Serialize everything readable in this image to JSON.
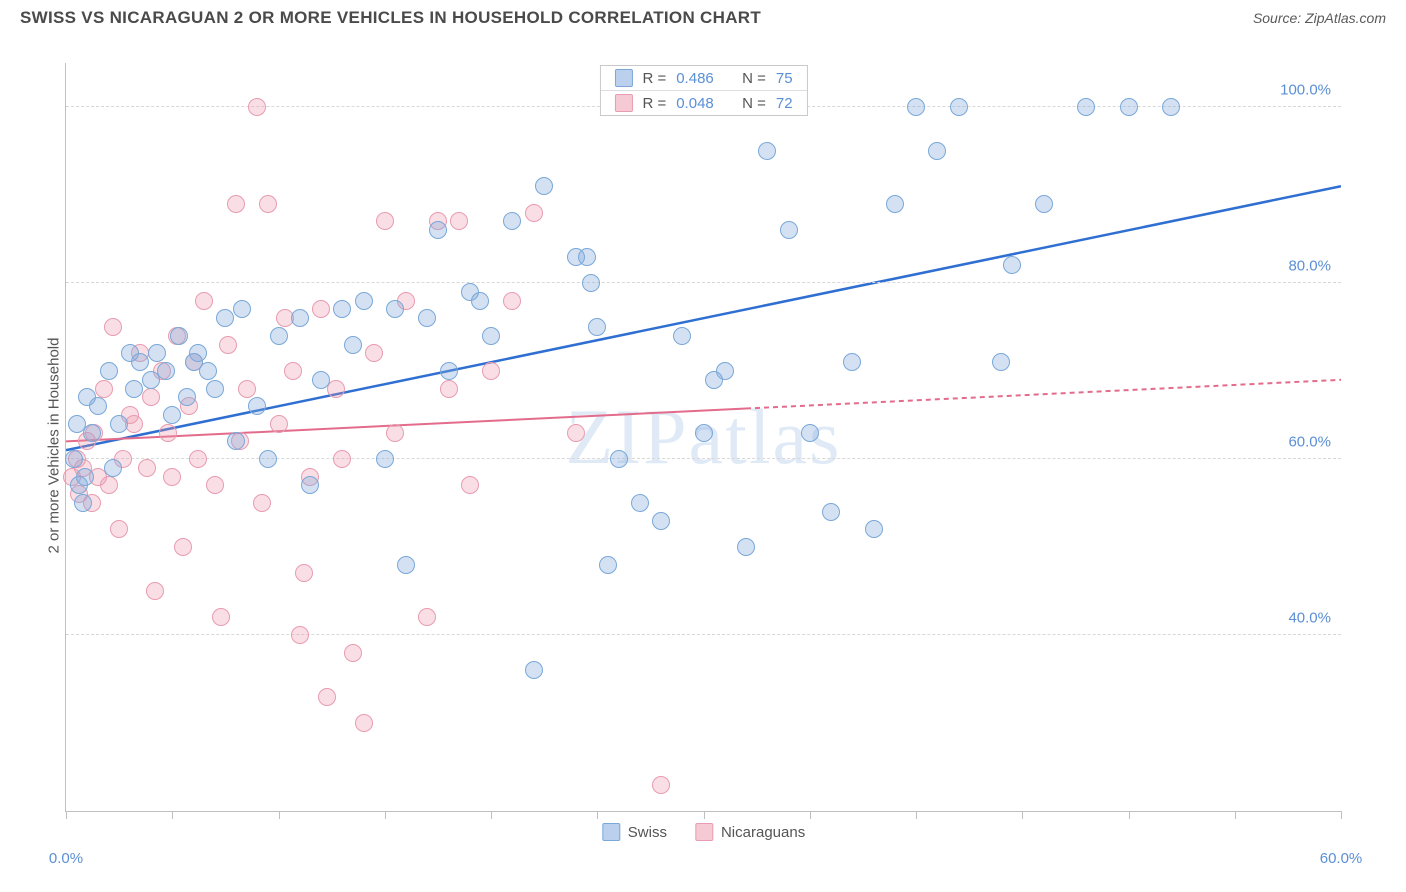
{
  "title": "SWISS VS NICARAGUAN 2 OR MORE VEHICLES IN HOUSEHOLD CORRELATION CHART",
  "source_label": "Source:",
  "source_name": "ZipAtlas.com",
  "watermark": "ZIPatlas",
  "chart": {
    "type": "scatter",
    "y_label": "2 or more Vehicles in Household",
    "xlim": [
      0,
      60
    ],
    "ylim": [
      20,
      105
    ],
    "x_ticks": [
      0,
      5,
      10,
      15,
      20,
      25,
      30,
      35,
      40,
      45,
      50,
      55,
      60
    ],
    "x_tick_labels": {
      "0": "0.0%",
      "60": "60.0%"
    },
    "y_gridlines": [
      40,
      60,
      80,
      100
    ],
    "y_tick_labels": {
      "40": "40.0%",
      "60": "60.0%",
      "80": "80.0%",
      "100": "100.0%"
    },
    "background_color": "#ffffff",
    "grid_color": "#d8d8d8",
    "axis_color": "#c0c0c0",
    "tick_label_color": "#5b8fd6",
    "axis_label_color": "#555555",
    "marker_radius": 9,
    "series": [
      {
        "name": "Swiss",
        "color_fill": "rgba(130,170,220,0.35)",
        "color_stroke": "#7aa8d8",
        "trend_color": "#2e6fd1",
        "trend_width": 2.5,
        "trend": {
          "x0": 0,
          "y0": 61,
          "x1": 60,
          "y1": 91,
          "dash_from_x": null
        },
        "stats": {
          "R": "0.486",
          "N": "75"
        },
        "points": [
          [
            0.4,
            60
          ],
          [
            0.5,
            64
          ],
          [
            0.6,
            57
          ],
          [
            0.8,
            55
          ],
          [
            0.9,
            58
          ],
          [
            1.0,
            67
          ],
          [
            1.2,
            63
          ],
          [
            1.5,
            66
          ],
          [
            2,
            70
          ],
          [
            2.2,
            59
          ],
          [
            2.5,
            64
          ],
          [
            3,
            72
          ],
          [
            3.2,
            68
          ],
          [
            3.5,
            71
          ],
          [
            4,
            69
          ],
          [
            4.3,
            72
          ],
          [
            4.7,
            70
          ],
          [
            5,
            65
          ],
          [
            5.3,
            74
          ],
          [
            5.7,
            67
          ],
          [
            6,
            71
          ],
          [
            6.2,
            72
          ],
          [
            6.7,
            70
          ],
          [
            7,
            68
          ],
          [
            7.5,
            76
          ],
          [
            8,
            62
          ],
          [
            8.3,
            77
          ],
          [
            9,
            66
          ],
          [
            9.5,
            60
          ],
          [
            10,
            74
          ],
          [
            11,
            76
          ],
          [
            11.5,
            57
          ],
          [
            12,
            69
          ],
          [
            13,
            77
          ],
          [
            13.5,
            73
          ],
          [
            14,
            78
          ],
          [
            15,
            60
          ],
          [
            15.5,
            77
          ],
          [
            16,
            48
          ],
          [
            17,
            76
          ],
          [
            17.5,
            86
          ],
          [
            18,
            70
          ],
          [
            19,
            79
          ],
          [
            19.5,
            78
          ],
          [
            20,
            74
          ],
          [
            21,
            87
          ],
          [
            22,
            36
          ],
          [
            22.5,
            91
          ],
          [
            24,
            83
          ],
          [
            24.5,
            83
          ],
          [
            24.7,
            80
          ],
          [
            25,
            75
          ],
          [
            25.5,
            48
          ],
          [
            26,
            60
          ],
          [
            27,
            55
          ],
          [
            28,
            53
          ],
          [
            29,
            74
          ],
          [
            30,
            63
          ],
          [
            30.5,
            69
          ],
          [
            31,
            70
          ],
          [
            32,
            50
          ],
          [
            33,
            95
          ],
          [
            34,
            86
          ],
          [
            35,
            63
          ],
          [
            36,
            54
          ],
          [
            37,
            71
          ],
          [
            38,
            52
          ],
          [
            39,
            89
          ],
          [
            40,
            100
          ],
          [
            41,
            95
          ],
          [
            42,
            100
          ],
          [
            44,
            71
          ],
          [
            44.5,
            82
          ],
          [
            46,
            89
          ],
          [
            48,
            100
          ],
          [
            50,
            100
          ],
          [
            52,
            100
          ]
        ]
      },
      {
        "name": "Nicaraguans",
        "color_fill": "rgba(235,150,170,0.30)",
        "color_stroke": "#e89cb0",
        "trend_color": "#e36b8b",
        "trend_width": 2,
        "trend": {
          "x0": 0,
          "y0": 62,
          "x1": 60,
          "y1": 69,
          "dash_from_x": 32
        },
        "stats": {
          "R": "0.048",
          "N": "72"
        },
        "points": [
          [
            0.3,
            58
          ],
          [
            0.5,
            60
          ],
          [
            0.6,
            56
          ],
          [
            0.8,
            59
          ],
          [
            1,
            62
          ],
          [
            1.2,
            55
          ],
          [
            1.3,
            63
          ],
          [
            1.5,
            58
          ],
          [
            1.8,
            68
          ],
          [
            2,
            57
          ],
          [
            2.2,
            75
          ],
          [
            2.5,
            52
          ],
          [
            2.7,
            60
          ],
          [
            3,
            65
          ],
          [
            3.2,
            64
          ],
          [
            3.5,
            72
          ],
          [
            3.8,
            59
          ],
          [
            4,
            67
          ],
          [
            4.2,
            45
          ],
          [
            4.5,
            70
          ],
          [
            4.8,
            63
          ],
          [
            5,
            58
          ],
          [
            5.2,
            74
          ],
          [
            5.5,
            50
          ],
          [
            5.8,
            66
          ],
          [
            6,
            71
          ],
          [
            6.2,
            60
          ],
          [
            6.5,
            78
          ],
          [
            7,
            57
          ],
          [
            7.3,
            42
          ],
          [
            7.6,
            73
          ],
          [
            8,
            89
          ],
          [
            8.2,
            62
          ],
          [
            8.5,
            68
          ],
          [
            9,
            100
          ],
          [
            9.2,
            55
          ],
          [
            9.5,
            89
          ],
          [
            10,
            64
          ],
          [
            10.3,
            76
          ],
          [
            10.7,
            70
          ],
          [
            11,
            40
          ],
          [
            11.2,
            47
          ],
          [
            11.5,
            58
          ],
          [
            12,
            77
          ],
          [
            12.3,
            33
          ],
          [
            12.7,
            68
          ],
          [
            13,
            60
          ],
          [
            13.5,
            38
          ],
          [
            14,
            30
          ],
          [
            14.5,
            72
          ],
          [
            15,
            87
          ],
          [
            15.5,
            63
          ],
          [
            16,
            78
          ],
          [
            17,
            42
          ],
          [
            17.5,
            87
          ],
          [
            18,
            68
          ],
          [
            18.5,
            87
          ],
          [
            19,
            57
          ],
          [
            20,
            70
          ],
          [
            21,
            78
          ],
          [
            22,
            88
          ],
          [
            24,
            63
          ],
          [
            28,
            23
          ]
        ]
      }
    ],
    "legend_bottom": [
      "Swiss",
      "Nicaraguans"
    ],
    "legend_stats_labels": {
      "R": "R =",
      "N": "N ="
    }
  }
}
